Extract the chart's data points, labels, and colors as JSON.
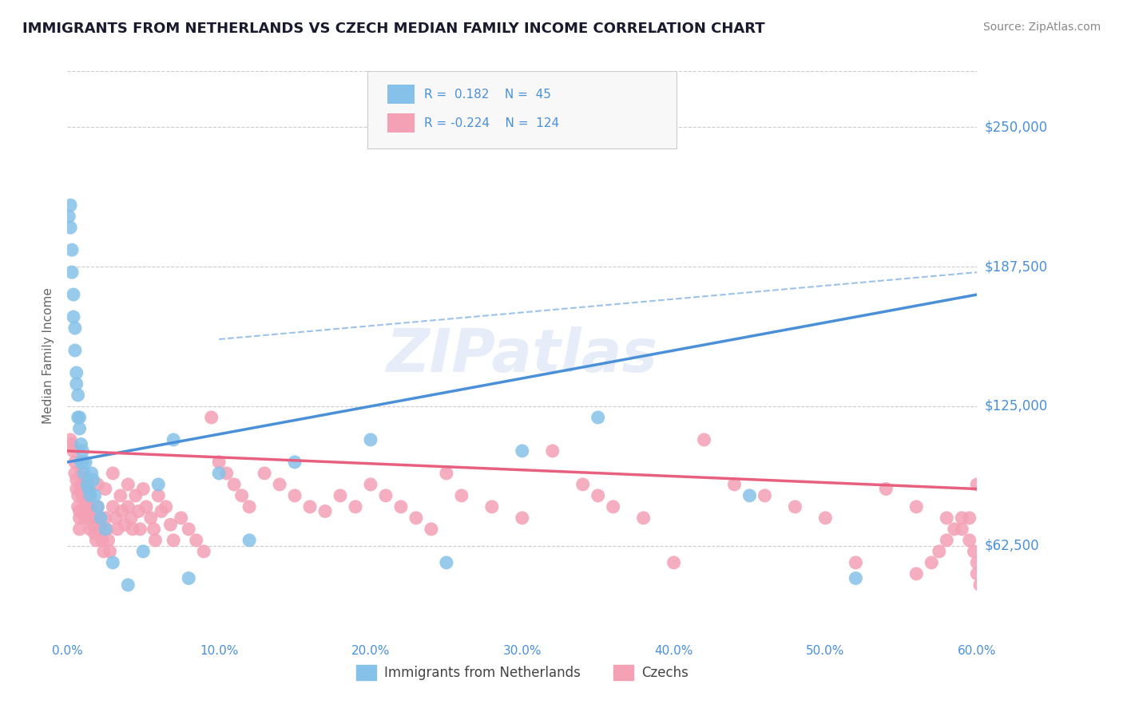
{
  "title": "IMMIGRANTS FROM NETHERLANDS VS CZECH MEDIAN FAMILY INCOME CORRELATION CHART",
  "source_text": "Source: ZipAtlas.com",
  "ylabel": "Median Family Income",
  "xmin": 0.0,
  "xmax": 0.6,
  "ymin": 20000,
  "ymax": 275000,
  "yticks": [
    62500,
    125000,
    187500,
    250000
  ],
  "ytick_labels": [
    "$62,500",
    "$125,000",
    "$187,500",
    "$250,000"
  ],
  "xticks": [
    0.0,
    0.1,
    0.2,
    0.3,
    0.4,
    0.5,
    0.6
  ],
  "xtick_labels": [
    "0.0%",
    "10.0%",
    "20.0%",
    "30.0%",
    "40.0%",
    "50.0%",
    "60.0%"
  ],
  "netherlands_color": "#85C1E8",
  "czech_color": "#F4A0B5",
  "netherlands_line_color": "#4A90D9",
  "czech_line_color": "#E86080",
  "netherlands_R": 0.182,
  "netherlands_N": 45,
  "czech_R": -0.224,
  "czech_N": 124,
  "watermark": "ZIPatlas",
  "legend_label_1": "Immigrants from Netherlands",
  "legend_label_2": "Czechs",
  "background_color": "#FFFFFF",
  "grid_color": "#CCCCCC",
  "title_color": "#1a1a2e",
  "axis_label_color": "#4A90D9",
  "nl_trend_x0": 0.0,
  "nl_trend_y0": 100000,
  "nl_trend_x1": 0.6,
  "nl_trend_y1": 175000,
  "cz_trend_x0": 0.0,
  "cz_trend_y0": 105000,
  "cz_trend_x1": 0.6,
  "cz_trend_y1": 88000,
  "dash_trend_x0": 0.1,
  "dash_trend_y0": 155000,
  "dash_trend_x1": 0.6,
  "dash_trend_y1": 185000,
  "netherlands_scatter_x": [
    0.001,
    0.002,
    0.002,
    0.003,
    0.003,
    0.004,
    0.004,
    0.005,
    0.005,
    0.006,
    0.006,
    0.007,
    0.007,
    0.008,
    0.008,
    0.009,
    0.009,
    0.01,
    0.01,
    0.011,
    0.012,
    0.013,
    0.014,
    0.015,
    0.016,
    0.017,
    0.018,
    0.02,
    0.022,
    0.025,
    0.03,
    0.04,
    0.05,
    0.06,
    0.07,
    0.08,
    0.1,
    0.12,
    0.15,
    0.2,
    0.25,
    0.3,
    0.35,
    0.45,
    0.52
  ],
  "netherlands_scatter_y": [
    210000,
    215000,
    205000,
    195000,
    185000,
    175000,
    165000,
    160000,
    150000,
    140000,
    135000,
    130000,
    120000,
    120000,
    115000,
    108000,
    100000,
    105000,
    100000,
    95000,
    100000,
    90000,
    88000,
    85000,
    95000,
    92000,
    85000,
    80000,
    75000,
    70000,
    55000,
    45000,
    60000,
    90000,
    110000,
    48000,
    95000,
    65000,
    100000,
    110000,
    55000,
    105000,
    120000,
    85000,
    48000
  ],
  "czech_scatter_x": [
    0.002,
    0.003,
    0.004,
    0.005,
    0.005,
    0.006,
    0.006,
    0.007,
    0.007,
    0.008,
    0.008,
    0.008,
    0.009,
    0.009,
    0.01,
    0.01,
    0.011,
    0.011,
    0.012,
    0.012,
    0.013,
    0.013,
    0.014,
    0.014,
    0.015,
    0.015,
    0.016,
    0.017,
    0.018,
    0.019,
    0.02,
    0.02,
    0.021,
    0.022,
    0.023,
    0.024,
    0.025,
    0.025,
    0.026,
    0.027,
    0.028,
    0.03,
    0.03,
    0.032,
    0.033,
    0.035,
    0.036,
    0.038,
    0.04,
    0.04,
    0.042,
    0.043,
    0.045,
    0.047,
    0.048,
    0.05,
    0.052,
    0.055,
    0.057,
    0.058,
    0.06,
    0.062,
    0.065,
    0.068,
    0.07,
    0.075,
    0.08,
    0.085,
    0.09,
    0.095,
    0.1,
    0.105,
    0.11,
    0.115,
    0.12,
    0.13,
    0.14,
    0.15,
    0.16,
    0.17,
    0.18,
    0.19,
    0.2,
    0.21,
    0.22,
    0.23,
    0.24,
    0.25,
    0.26,
    0.28,
    0.3,
    0.32,
    0.34,
    0.35,
    0.36,
    0.38,
    0.4,
    0.42,
    0.44,
    0.46,
    0.48,
    0.5,
    0.52,
    0.54,
    0.56,
    0.58,
    0.59,
    0.595,
    0.598,
    0.6,
    0.6,
    0.602,
    0.6,
    0.595,
    0.59,
    0.585,
    0.58,
    0.575,
    0.57,
    0.56
  ],
  "czech_scatter_y": [
    110000,
    108000,
    105000,
    100000,
    95000,
    92000,
    88000,
    85000,
    80000,
    78000,
    75000,
    70000,
    95000,
    88000,
    92000,
    85000,
    80000,
    75000,
    90000,
    82000,
    88000,
    78000,
    85000,
    75000,
    80000,
    70000,
    75000,
    72000,
    68000,
    65000,
    90000,
    80000,
    75000,
    70000,
    65000,
    60000,
    88000,
    75000,
    70000,
    65000,
    60000,
    95000,
    80000,
    75000,
    70000,
    85000,
    78000,
    72000,
    90000,
    80000,
    75000,
    70000,
    85000,
    78000,
    70000,
    88000,
    80000,
    75000,
    70000,
    65000,
    85000,
    78000,
    80000,
    72000,
    65000,
    75000,
    70000,
    65000,
    60000,
    120000,
    100000,
    95000,
    90000,
    85000,
    80000,
    95000,
    90000,
    85000,
    80000,
    78000,
    85000,
    80000,
    90000,
    85000,
    80000,
    75000,
    70000,
    95000,
    85000,
    80000,
    75000,
    105000,
    90000,
    85000,
    80000,
    75000,
    55000,
    110000,
    90000,
    85000,
    80000,
    75000,
    55000,
    88000,
    80000,
    75000,
    70000,
    65000,
    60000,
    55000,
    50000,
    45000,
    90000,
    75000,
    75000,
    70000,
    65000,
    60000,
    55000,
    50000
  ]
}
